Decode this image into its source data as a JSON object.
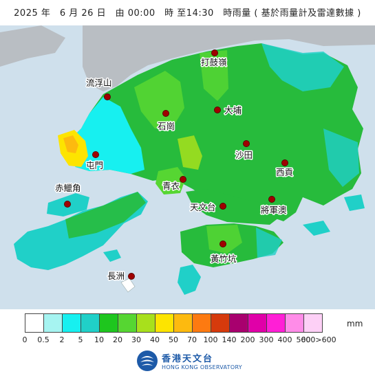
{
  "title": "2025 年　6 月 26 日　由 00:00　時 至14:30　時雨量 ( 基於雨量計及雷達數據 )",
  "stations": [
    {
      "name": "打鼓嶺"
    },
    {
      "name": "流浮山"
    },
    {
      "name": "大埔"
    },
    {
      "name": "石崗"
    },
    {
      "name": "沙田"
    },
    {
      "name": "屯門"
    },
    {
      "name": "西貢"
    },
    {
      "name": "青衣"
    },
    {
      "name": "赤鱲角"
    },
    {
      "name": "天文台"
    },
    {
      "name": "將軍澳"
    },
    {
      "name": "黃竹坑"
    },
    {
      "name": "長洲"
    }
  ],
  "legend": {
    "unit": "mm",
    "colors": [
      "#ffffff",
      "#a6f4f1",
      "#17f0f0",
      "#20d0c8",
      "#1ec61e",
      "#56d632",
      "#a8e01c",
      "#fde400",
      "#fdba0f",
      "#fd7a11",
      "#d63a0c",
      "#a8006e",
      "#e000a8",
      "#ff1fd6",
      "#ff8ce8",
      "#fdd0f6"
    ],
    "ticks": [
      "0",
      "0.5",
      "2",
      "5",
      "10",
      "20",
      "30",
      "40",
      "50",
      "70",
      "100",
      "140",
      "200",
      "300",
      "400",
      "500",
      "600>600"
    ]
  },
  "logo": {
    "zh": "香港天文台",
    "en": "HONG KONG OBSERVATORY"
  }
}
